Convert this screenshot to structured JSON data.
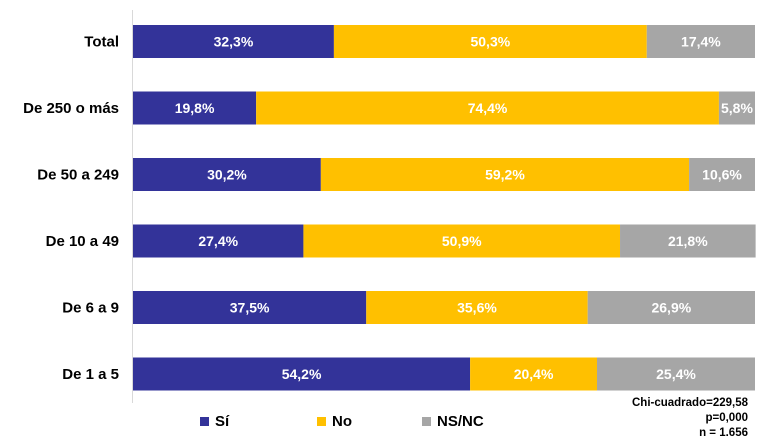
{
  "chart_data": {
    "type": "bar",
    "orientation": "horizontal",
    "stacked": true,
    "categories": [
      "Total",
      "De 250 o más",
      "De 50 a 249",
      "De 10 a 49",
      "De 6 a 9",
      "De 1 a 5"
    ],
    "series": [
      {
        "name": "Sí",
        "color": "#333399",
        "values": [
          32.3,
          19.8,
          30.2,
          27.4,
          37.5,
          54.2
        ],
        "labels": [
          "32,3%",
          "19,8%",
          "30,2%",
          "27,4%",
          "37,5%",
          "54,2%"
        ]
      },
      {
        "name": "No",
        "color": "#FFC000",
        "values": [
          50.3,
          74.4,
          59.2,
          50.9,
          35.6,
          20.4
        ],
        "labels": [
          "50,3%",
          "74,4%",
          "59,2%",
          "50,9%",
          "35,6%",
          "20,4%"
        ]
      },
      {
        "name": "NS/NC",
        "color": "#A6A6A6",
        "values": [
          17.4,
          5.8,
          10.6,
          21.8,
          26.9,
          25.4
        ],
        "labels": [
          "17,4%",
          "5,8%",
          "10,6%",
          "21,8%",
          "26,9%",
          "25,4%"
        ]
      }
    ],
    "xlim": [
      0,
      100
    ],
    "legend_position": "bottom",
    "grid": false
  },
  "legend": {
    "items": [
      {
        "label": "Sí",
        "color": "#333399"
      },
      {
        "label": "No",
        "color": "#FFC000"
      },
      {
        "label": "NS/NC",
        "color": "#A6A6A6"
      }
    ]
  },
  "stats": {
    "chi": "Chi-cuadrado=229,58",
    "p": "p=0,000",
    "n": "n = 1.656"
  }
}
